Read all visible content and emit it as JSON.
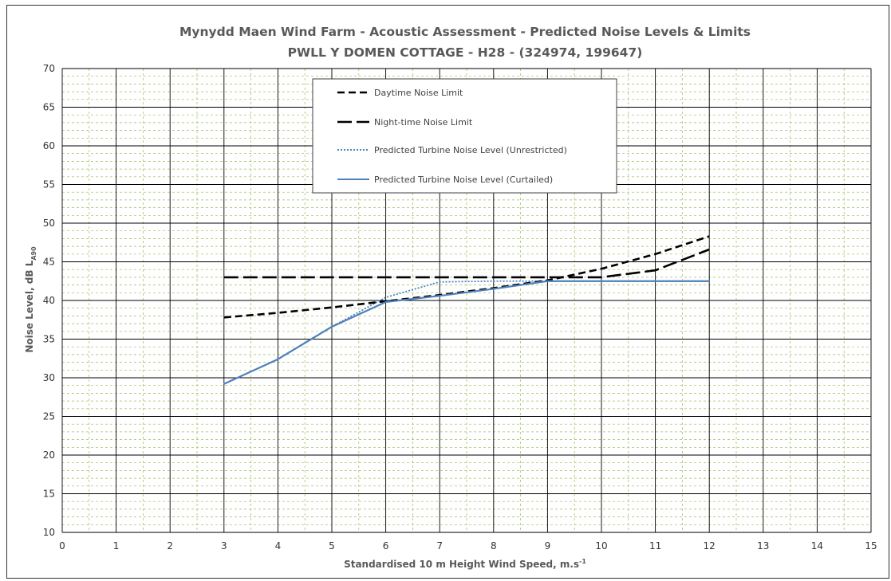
{
  "chart_data": {
    "type": "line",
    "title": "Mynydd Maen Wind Farm - Acoustic Assessment - Predicted Noise Levels & Limits",
    "subtitle": "PWLL Y DOMEN COTTAGE - H28 - (324974, 199647)",
    "xlabel": "Standardised 10 m Height Wind Speed, m.s",
    "xlabel_sup": "-1",
    "ylabel": "Noise Level, dB L",
    "ylabel_sub": "A90",
    "xlim": [
      0,
      15
    ],
    "ylim": [
      10,
      70
    ],
    "x_ticks": [
      "0",
      "1",
      "2",
      "3",
      "4",
      "5",
      "6",
      "7",
      "8",
      "9",
      "10",
      "11",
      "12",
      "13",
      "14",
      "15"
    ],
    "y_ticks": [
      "10",
      "15",
      "20",
      "25",
      "30",
      "35",
      "40",
      "45",
      "50",
      "55",
      "60",
      "65",
      "70"
    ],
    "grid": true,
    "legend_position": "top-center",
    "series": [
      {
        "name": "Daytime Noise Limit",
        "style": "dashed",
        "color": "#000000",
        "x": [
          3,
          4,
          5,
          6,
          7,
          8,
          9,
          10,
          11,
          12
        ],
        "y": [
          37.8,
          38.4,
          39.1,
          39.9,
          40.7,
          41.6,
          42.6,
          44.1,
          46.0,
          48.3
        ]
      },
      {
        "name": "Night-time Noise Limit",
        "style": "longdash",
        "color": "#000000",
        "x": [
          3,
          4,
          5,
          6,
          7,
          8,
          9,
          10,
          11,
          12
        ],
        "y": [
          43.0,
          43.0,
          43.0,
          43.0,
          43.0,
          43.0,
          43.0,
          43.0,
          43.9,
          46.6
        ]
      },
      {
        "name": "Predicted Turbine Noise Level (Unrestricted)",
        "style": "dotted",
        "color": "#4F81BD",
        "x": [
          3,
          4,
          5,
          6,
          7,
          8,
          9,
          10,
          11,
          12
        ],
        "y": [
          29.2,
          32.4,
          36.6,
          40.4,
          42.4,
          42.5,
          42.5,
          42.5,
          42.5,
          42.5
        ]
      },
      {
        "name": "Predicted Turbine Noise Level (Curtailed)",
        "style": "solid",
        "color": "#4F81BD",
        "x": [
          3,
          4,
          5,
          6,
          7,
          8,
          9,
          10,
          11,
          12
        ],
        "y": [
          29.2,
          32.4,
          36.6,
          39.8,
          40.6,
          41.5,
          42.5,
          42.5,
          42.5,
          42.5
        ]
      }
    ]
  }
}
